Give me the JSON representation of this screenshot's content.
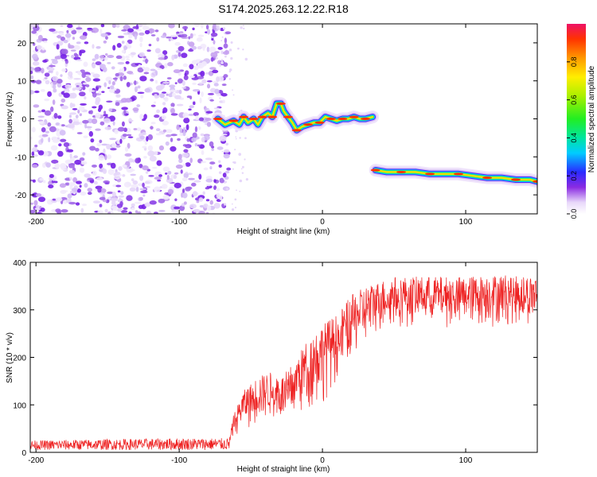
{
  "title": "S174.2025.263.12.22.R18",
  "colors": {
    "snr_line": "#ee2222",
    "speckle": "#7b22ee",
    "axis": "#000000"
  },
  "chart_data": [
    {
      "type": "heatmap",
      "id": "spectrogram",
      "xlabel": "Height of straight line (km)",
      "ylabel": "Frequency (Hz)",
      "xlim": [
        -204,
        150
      ],
      "ylim": [
        -25,
        25
      ],
      "xticks": [
        -200,
        -100,
        0,
        100
      ],
      "yticks": [
        -20,
        -10,
        0,
        10,
        20
      ],
      "noise_region_x": [
        -204,
        -72
      ],
      "ridge_segments": [
        {
          "name": "upper ridge",
          "x": [
            -73,
            -68,
            -62,
            -58,
            -55,
            -52,
            -48,
            -45,
            -42,
            -38,
            -35,
            -32,
            -29,
            -27,
            -24,
            -21,
            -18,
            -14,
            -10,
            -6,
            -2,
            2,
            6,
            10,
            14,
            18,
            22,
            26,
            30,
            35
          ],
          "y": [
            0.0,
            -1.5,
            -0.5,
            -1.5,
            0.5,
            -1.0,
            0.0,
            -1.5,
            0.5,
            1.5,
            0.5,
            4.0,
            4.0,
            2.0,
            0.5,
            -1.0,
            -3.0,
            -2.0,
            -1.5,
            -1.0,
            -1.0,
            0.5,
            0.0,
            -0.5,
            0.0,
            0.0,
            0.5,
            0.0,
            0.0,
            0.5
          ]
        },
        {
          "name": "lower ridge",
          "x": [
            37,
            45,
            55,
            65,
            75,
            85,
            95,
            105,
            115,
            125,
            135,
            145,
            150
          ],
          "y": [
            -13.5,
            -14.0,
            -14.0,
            -14.0,
            -14.5,
            -14.5,
            -14.5,
            -15.0,
            -15.5,
            -15.5,
            -16.0,
            -16.0,
            -16.5
          ]
        }
      ],
      "colorbar": {
        "label": "Normalized spectral amplitude",
        "range": [
          0.0,
          1.0
        ],
        "ticks": [
          "0.0",
          "0.2",
          "0.4",
          "0.6",
          "0.8"
        ],
        "tick_values": [
          0.0,
          0.2,
          0.4,
          0.6,
          0.8
        ]
      }
    },
    {
      "type": "line",
      "id": "snr",
      "xlabel": "Height of straight line (km)",
      "ylabel": "SNR (10 * v/v)",
      "xlim": [
        -204,
        150
      ],
      "ylim": [
        0,
        400
      ],
      "xticks": [
        -200,
        -100,
        0,
        100
      ],
      "yticks": [
        0,
        100,
        200,
        300,
        400
      ],
      "series": [
        {
          "name": "SNR",
          "envelope": {
            "x": [
              -204,
              -150,
              -100,
              -65,
              -62,
              -55,
              -45,
              -35,
              -28,
              -20,
              -10,
              0,
              10,
              20,
              30,
              40,
              50,
              70,
              100,
              130,
              150
            ],
            "low": [
              5,
              5,
              5,
              5,
              30,
              40,
              50,
              60,
              55,
              60,
              80,
              100,
              140,
              180,
              210,
              250,
              250,
              260,
              255,
              260,
              260
            ],
            "high": [
              25,
              28,
              30,
              30,
              80,
              130,
              160,
              170,
              160,
              190,
              240,
              270,
              290,
              330,
              350,
              360,
              370,
              370,
              370,
              375,
              370
            ]
          }
        }
      ]
    }
  ]
}
